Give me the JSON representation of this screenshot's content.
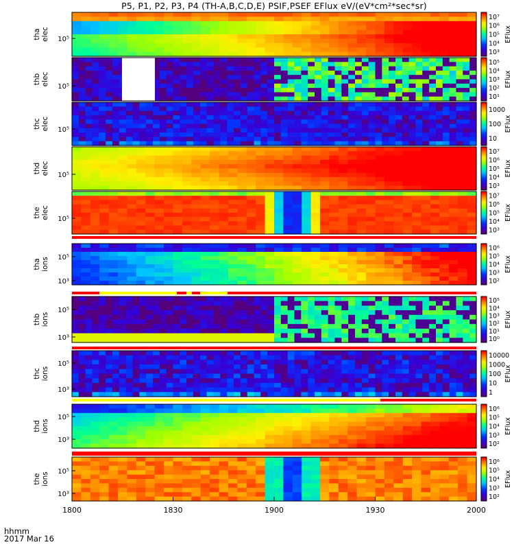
{
  "title": "P5, P1, P2, P3, P4 (TH-A,B,C,D,E) PSIF,PSEF EFlux eV/(eV*cm²*sec*sr)",
  "footer": {
    "time_label": "hhmm",
    "date_label": "2017 Mar 16"
  },
  "x_axis": {
    "range": [
      1800,
      2000
    ],
    "ticks": [
      "1800",
      "1830",
      "1900",
      "1930",
      "2000"
    ]
  },
  "colors": {
    "bar_red": "#ff0000",
    "bar_yellow": "#ffff00"
  },
  "chart_data": [
    {
      "type": "heatmap",
      "ylabel": [
        "tha",
        "elec"
      ],
      "ytick": "10⁵",
      "colorbar_label": "EFlux",
      "colorbar_ticks": [
        "10³",
        "10⁴",
        "10⁵",
        "10⁶",
        "10⁷"
      ]
    },
    {
      "type": "heatmap",
      "ylabel": [
        "thb",
        "elec"
      ],
      "ytick": "10⁵",
      "colorbar_label": "EFlux",
      "colorbar_ticks": [
        "10¹",
        "10²",
        "10³",
        "10⁴",
        "10⁵"
      ]
    },
    {
      "type": "heatmap",
      "ylabel": [
        "thc",
        "elec"
      ],
      "ytick": "10⁵",
      "colorbar_label": "EFlux",
      "colorbar_ticks": [
        "10",
        "100",
        "1000"
      ]
    },
    {
      "type": "heatmap",
      "ylabel": [
        "thd",
        "elec"
      ],
      "ytick": "10⁵",
      "colorbar_label": "EFlux",
      "colorbar_ticks": [
        "10³",
        "10⁴",
        "10⁵",
        "10⁶",
        "10⁷"
      ]
    },
    {
      "type": "heatmap",
      "ylabel": [
        "the",
        "elec"
      ],
      "ytick": "10⁵",
      "colorbar_label": "EFlux",
      "colorbar_ticks": [
        "10³",
        "10⁴",
        "10⁵",
        "10⁶",
        "10⁷"
      ]
    },
    {
      "type": "heatmap",
      "ylabel": [
        "tha",
        "ions"
      ],
      "yticks": [
        "10⁵",
        "10³"
      ],
      "colorbar_label": "EFlux",
      "colorbar_ticks": [
        "10²",
        "10³",
        "10⁴",
        "10⁵",
        "10⁶"
      ]
    },
    {
      "type": "heatmap",
      "ylabel": [
        "thb",
        "ions"
      ],
      "yticks": [
        "10⁵",
        "10³"
      ],
      "colorbar_label": "EFlux",
      "colorbar_ticks": [
        "10⁰",
        "10¹",
        "10²",
        "10³",
        "10⁴",
        "10⁵"
      ]
    },
    {
      "type": "heatmap",
      "ylabel": [
        "thc",
        "ions"
      ],
      "yticks": [
        "10⁵",
        "10³"
      ],
      "colorbar_label": "EFlux",
      "colorbar_ticks": [
        "1",
        "10",
        "100",
        "1000",
        "10000"
      ]
    },
    {
      "type": "heatmap",
      "ylabel": [
        "thd",
        "ions"
      ],
      "yticks": [
        "10⁵",
        "10³"
      ],
      "colorbar_label": "EFlux",
      "colorbar_ticks": [
        "10²",
        "10³",
        "10⁴",
        "10⁵",
        "10⁶"
      ]
    },
    {
      "type": "heatmap",
      "ylabel": [
        "the",
        "ions"
      ],
      "yticks": [
        "10⁵",
        "10³"
      ],
      "colorbar_label": "EFlux",
      "colorbar_ticks": [
        "10²",
        "10³",
        "10⁴",
        "10⁵",
        "10⁶"
      ]
    }
  ]
}
